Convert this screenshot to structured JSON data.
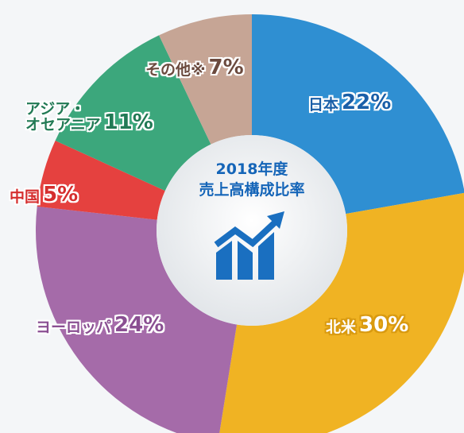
{
  "chart_data": {
    "type": "donut",
    "title": "2018年度",
    "subtitle": "売上高構成比率",
    "categories": [
      "日本",
      "北米",
      "ヨーロッパ",
      "中国",
      "アジア・\nオセアニア",
      "その他※"
    ],
    "values": [
      22,
      30,
      24,
      5,
      11,
      7
    ],
    "value_labels": [
      "22%",
      "30%",
      "24%",
      "5%",
      "11%",
      "7%"
    ],
    "colors": [
      "#2f8fd2",
      "#f0b323",
      "#a56ba9",
      "#e5413f",
      "#3ca77c",
      "#c6a595"
    ]
  }
}
